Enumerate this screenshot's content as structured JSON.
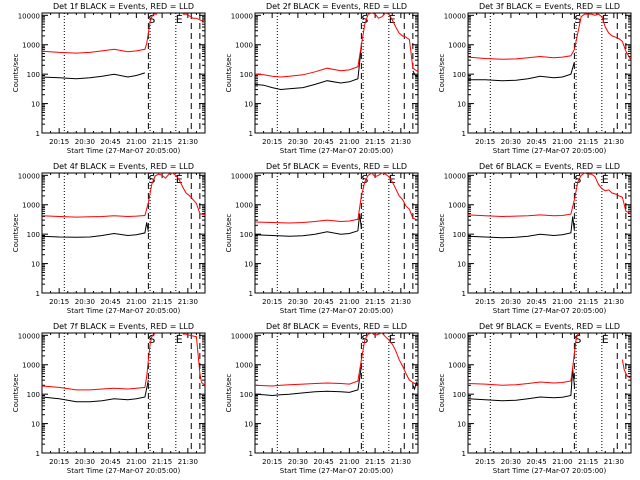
{
  "chart_data": {
    "type": "line",
    "grid": false,
    "yscale": "log",
    "ylabel": "Counts/sec",
    "xlabel": "Start Time (27-Mar-07 20:05:00)",
    "x_tick_labels": [
      "20:15",
      "20:30",
      "20:45",
      "21:00",
      "21:15",
      "21:30"
    ],
    "y_tick_labels": [
      "1",
      "10",
      "100",
      "1000",
      "10000"
    ],
    "ylim": [
      1,
      12000
    ],
    "xlim_minutes_after_start": [
      0,
      95
    ],
    "colors": {
      "events": "#000000",
      "lld": "#ff0000"
    },
    "dotted_lines_minutes": [
      13,
      63,
      78
    ],
    "dashed_lines_minutes": [
      62,
      87,
      92
    ],
    "markers": [
      {
        "label": "S",
        "minute": 64
      },
      {
        "label": "E",
        "minute": 80
      }
    ],
    "panels": [
      {
        "title": "Det 1f BLACK = Events, RED = LLD",
        "series": [
          {
            "name": "Events",
            "x": [
              0,
              10,
              20,
              28,
              35,
              42,
              50,
              55,
              60
            ],
            "y": [
              80,
              75,
              70,
              75,
              85,
              100,
              80,
              90,
              110
            ]
          },
          {
            "name": "LLD",
            "x": [
              0,
              10,
              20,
              28,
              35,
              42,
              50,
              55,
              60,
              61,
              62,
              63,
              64,
              65,
              66,
              67
            ],
            "y": [
              600,
              550,
              520,
              550,
              620,
              700,
              580,
              620,
              700,
              1100,
              2500,
              6000,
              9000,
              11000,
              11000,
              11000
            ]
          },
          {
            "name": "LLD",
            "x": [
              82,
              84,
              86,
              88,
              90,
              92,
              95
            ],
            "y": [
              11000,
              11000,
              9500,
              8000,
              8000,
              7000,
              6000
            ]
          }
        ]
      },
      {
        "title": "Det 2f BLACK = Events, RED = LLD",
        "series": [
          {
            "name": "Events",
            "x": [
              0,
              5,
              10,
              15,
              20,
              28,
              35,
              42,
              50,
              55,
              60,
              62
            ],
            "y": [
              45,
              42,
              35,
              30,
              32,
              35,
              45,
              60,
              50,
              55,
              70,
              900
            ]
          },
          {
            "name": "LLD",
            "x": [
              0,
              5,
              10,
              15,
              20,
              28,
              35,
              42,
              50,
              55,
              60,
              62,
              64,
              66,
              68,
              70,
              72,
              74,
              76,
              78,
              80,
              82,
              84,
              86,
              88,
              90,
              92,
              95
            ],
            "y": [
              100,
              95,
              85,
              80,
              85,
              95,
              120,
              160,
              130,
              140,
              180,
              1000,
              5000,
              11000,
              12000,
              11000,
              8000,
              9000,
              12000,
              11000,
              7000,
              4000,
              2500,
              2000,
              1800,
              1500,
              160,
              120
            ]
          },
          {
            "name": "Events",
            "x": [
              92,
              93,
              94,
              95
            ],
            "y": [
              130,
              100,
              80,
              90
            ]
          }
        ]
      },
      {
        "title": "Det 3f BLACK = Events, RED = LLD",
        "series": [
          {
            "name": "Events",
            "x": [
              0,
              10,
              20,
              28,
              35,
              42,
              50,
              55,
              60,
              62
            ],
            "y": [
              65,
              65,
              60,
              62,
              70,
              85,
              75,
              80,
              100,
              260
            ]
          },
          {
            "name": "LLD",
            "x": [
              0,
              10,
              20,
              28,
              35,
              42,
              50,
              55,
              60,
              62,
              64,
              66,
              68,
              70,
              72,
              74,
              76,
              78,
              80,
              82,
              84,
              86,
              88,
              90,
              92,
              95
            ],
            "y": [
              380,
              340,
              320,
              330,
              360,
              400,
              360,
              380,
              420,
              700,
              2500,
              9000,
              11000,
              11000,
              11000,
              10000,
              11000,
              9000,
              4000,
              2500,
              2000,
              1800,
              1600,
              1300,
              600,
              300
            ]
          }
        ]
      },
      {
        "title": "Det 4f BLACK = Events, RED = LLD",
        "series": [
          {
            "name": "Events",
            "x": [
              0,
              10,
              20,
              28,
              35,
              42,
              50,
              55,
              60,
              61,
              62
            ],
            "y": [
              85,
              80,
              78,
              80,
              90,
              105,
              90,
              95,
              110,
              250,
              120
            ]
          },
          {
            "name": "LLD",
            "x": [
              0,
              10,
              20,
              28,
              35,
              42,
              50,
              55,
              60,
              62,
              64,
              66,
              68,
              70,
              72,
              74,
              76,
              78,
              80,
              82,
              84,
              86,
              88,
              90,
              92,
              95
            ],
            "y": [
              420,
              400,
              380,
              390,
              400,
              420,
              400,
              410,
              430,
              1200,
              5000,
              9500,
              11000,
              10000,
              8000,
              11000,
              12000,
              10000,
              7000,
              4000,
              2500,
              2000,
              1500,
              1100,
              500,
              450
            ]
          }
        ]
      },
      {
        "title": "Det 5f BLACK = Events, RED = LLD",
        "series": [
          {
            "name": "Events",
            "x": [
              0,
              10,
              20,
              28,
              35,
              42,
              50,
              55,
              60,
              61,
              62
            ],
            "y": [
              95,
              90,
              85,
              88,
              100,
              120,
              100,
              105,
              130,
              500,
              150
            ]
          },
          {
            "name": "LLD",
            "x": [
              0,
              10,
              20,
              28,
              35,
              42,
              50,
              55,
              60,
              62,
              64,
              66,
              68,
              70,
              72,
              74,
              76,
              78,
              80,
              82,
              84,
              86,
              88,
              90,
              92,
              95
            ],
            "y": [
              260,
              250,
              240,
              250,
              270,
              300,
              270,
              280,
              320,
              2000,
              6000,
              10000,
              12000,
              9000,
              10000,
              12000,
              11000,
              9000,
              6000,
              3500,
              2000,
              1500,
              900,
              700,
              350,
              300
            ]
          }
        ]
      },
      {
        "title": "Det 6f BLACK = Events, RED = LLD",
        "series": [
          {
            "name": "Events",
            "x": [
              0,
              10,
              20,
              28,
              35,
              42,
              50,
              55,
              60,
              61,
              62
            ],
            "y": [
              85,
              80,
              75,
              78,
              85,
              100,
              90,
              95,
              110,
              400,
              130
            ]
          },
          {
            "name": "LLD",
            "x": [
              0,
              10,
              20,
              28,
              35,
              42,
              50,
              55,
              60,
              62,
              64,
              66,
              68,
              70,
              72,
              74,
              76,
              78,
              80,
              82,
              84,
              86,
              88,
              90,
              92,
              95
            ],
            "y": [
              450,
              420,
              400,
              410,
              420,
              450,
              420,
              430,
              480,
              1500,
              6000,
              10000,
              12000,
              11000,
              11000,
              9000,
              5000,
              3500,
              3000,
              3200,
              2500,
              2300,
              2000,
              1800,
              600,
              500
            ]
          }
        ]
      },
      {
        "title": "Det 7f BLACK = Events, RED = LLD",
        "series": [
          {
            "name": "Events",
            "x": [
              0,
              10,
              20,
              28,
              35,
              42,
              50,
              55,
              60,
              62
            ],
            "y": [
              80,
              70,
              55,
              55,
              60,
              70,
              65,
              70,
              80,
              300
            ]
          },
          {
            "name": "LLD",
            "x": [
              0,
              10,
              20,
              28,
              35,
              42,
              50,
              55,
              60,
              61,
              62,
              63,
              64,
              65,
              66
            ],
            "y": [
              190,
              170,
              140,
              140,
              150,
              160,
              150,
              160,
              170,
              400,
              1500,
              5000,
              9000,
              11000,
              11000
            ]
          },
          {
            "name": "LLD",
            "x": [
              82,
              84,
              86,
              88,
              90,
              92,
              93,
              95
            ],
            "y": [
              11000,
              11000,
              10000,
              9500,
              9000,
              500,
              250,
              200
            ]
          },
          {
            "name": "Events",
            "x": [
              93,
              94,
              95
            ],
            "y": [
              80,
              70,
              75
            ]
          }
        ]
      },
      {
        "title": "Det 8f BLACK = Events, RED = LLD",
        "series": [
          {
            "name": "Events",
            "x": [
              0,
              5,
              10,
              15,
              20,
              28,
              35,
              42,
              50,
              55,
              60,
              62
            ],
            "y": [
              100,
              95,
              90,
              95,
              100,
              110,
              120,
              125,
              120,
              115,
              140,
              900
            ]
          },
          {
            "name": "LLD",
            "x": [
              0,
              5,
              10,
              15,
              20,
              28,
              35,
              42,
              50,
              55,
              60,
              62,
              64,
              66,
              68,
              70,
              72,
              74,
              76,
              78,
              80,
              82,
              84,
              86,
              88,
              90,
              92,
              95
            ],
            "y": [
              200,
              195,
              190,
              200,
              210,
              220,
              230,
              240,
              230,
              220,
              280,
              1500,
              7000,
              11000,
              12000,
              10000,
              11000,
              12000,
              9000,
              7000,
              5000,
              3000,
              1500,
              900,
              500,
              300,
              250,
              200
            ]
          },
          {
            "name": "Events",
            "x": [
              92,
              93,
              94,
              95
            ],
            "y": [
              200,
              150,
              250,
              200
            ]
          }
        ]
      },
      {
        "title": "Det 9f BLACK = Events, RED = LLD",
        "series": [
          {
            "name": "Events",
            "x": [
              0,
              10,
              20,
              28,
              35,
              42,
              50,
              55,
              60,
              61,
              62
            ],
            "y": [
              70,
              65,
              60,
              62,
              70,
              80,
              75,
              78,
              90,
              700,
              200
            ]
          },
          {
            "name": "LLD",
            "x": [
              0,
              10,
              20,
              28,
              35,
              42,
              50,
              55,
              60,
              61,
              62,
              63,
              64,
              65
            ],
            "y": [
              230,
              220,
              200,
              210,
              230,
              260,
              240,
              250,
              280,
              800,
              2500,
              7000,
              11000,
              11000
            ]
          },
          {
            "name": "LLD",
            "x": [
              90,
              91,
              92,
              93,
              95
            ],
            "y": [
              1500,
              700,
              500,
              400,
              350
            ]
          }
        ]
      }
    ]
  }
}
